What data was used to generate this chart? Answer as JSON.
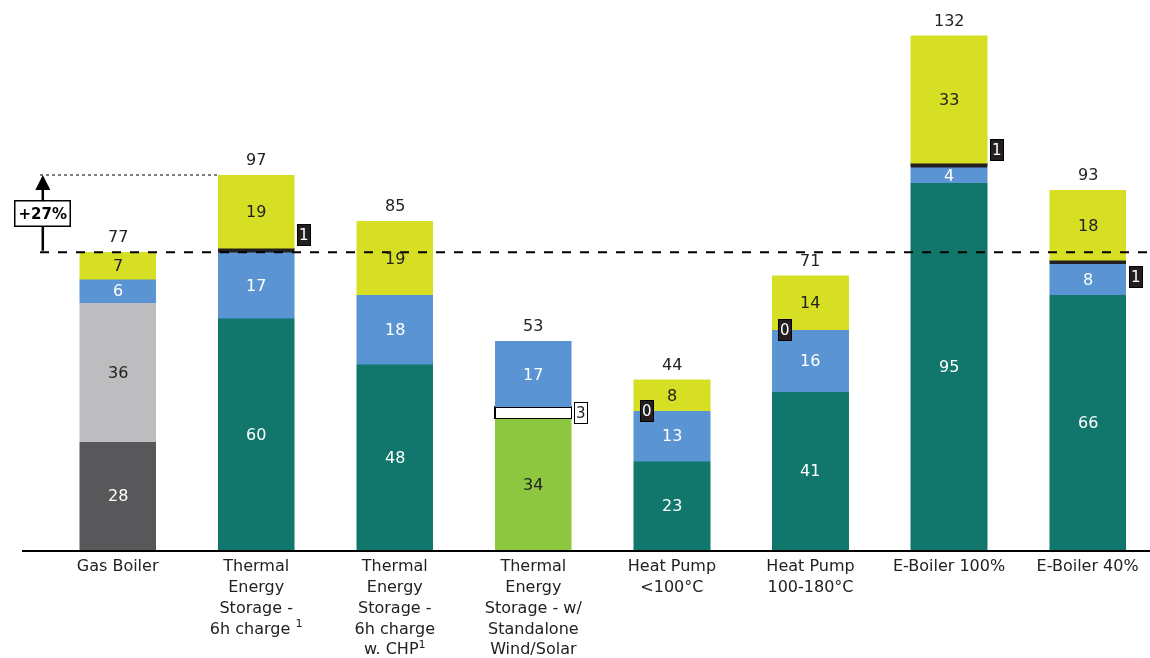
{
  "chart_data": {
    "type": "bar",
    "stacked": true,
    "data_labels": true,
    "tick_labels": "x",
    "categories": [
      "Gas Boiler",
      "Thermal\nEnergy\nStorage -\n6h charge $^{1}$",
      "Thermal\nEnergy\nStorage -\n6h charge\nw. CHP$^{1}$",
      "Thermal\nEnergy\nStorage - w/\nStandalone\nWind/Solar",
      "Heat Pump\n<100°C",
      "Heat Pump\n100-180°C",
      "E-Boiler 100%",
      "E-Boiler 40%"
    ],
    "series": [
      {
        "color": "#58585a",
        "values": [
          28,
          null,
          null,
          null,
          null,
          null,
          null,
          null
        ]
      },
      {
        "color": "#bdbdbf",
        "values": [
          36,
          null,
          null,
          null,
          null,
          null,
          null,
          null
        ]
      },
      {
        "color": "#11766c",
        "values": [
          null,
          60,
          48,
          null,
          23,
          41,
          95,
          66
        ]
      },
      {
        "color": "#8dc63f",
        "values": [
          null,
          null,
          null,
          34,
          null,
          null,
          null,
          null
        ]
      },
      {
        "color": "#ffffff",
        "values": [
          null,
          null,
          null,
          3,
          null,
          null,
          null,
          null
        ]
      },
      {
        "color": "#5b94d3",
        "values": [
          6,
          17,
          18,
          17,
          13,
          16,
          4,
          8
        ]
      },
      {
        "color": "#231f20",
        "values": [
          null,
          1,
          null,
          null,
          0,
          0,
          1,
          1
        ]
      },
      {
        "color": "#d6df23",
        "values": [
          7,
          19,
          19,
          null,
          8,
          14,
          33,
          18
        ]
      }
    ],
    "totals": [
      "77",
      "97",
      "85",
      "53",
      "44",
      "71",
      "132",
      "93"
    ],
    "ref_lines": [
      {
        "axis": "y",
        "value": 77,
        "line_style": "dashed",
        "color": "#000000"
      },
      {
        "axis": "y",
        "value": 97,
        "line_style": "dotted",
        "color": "#000000"
      }
    ],
    "annotations": [
      "+27%"
    ]
  }
}
